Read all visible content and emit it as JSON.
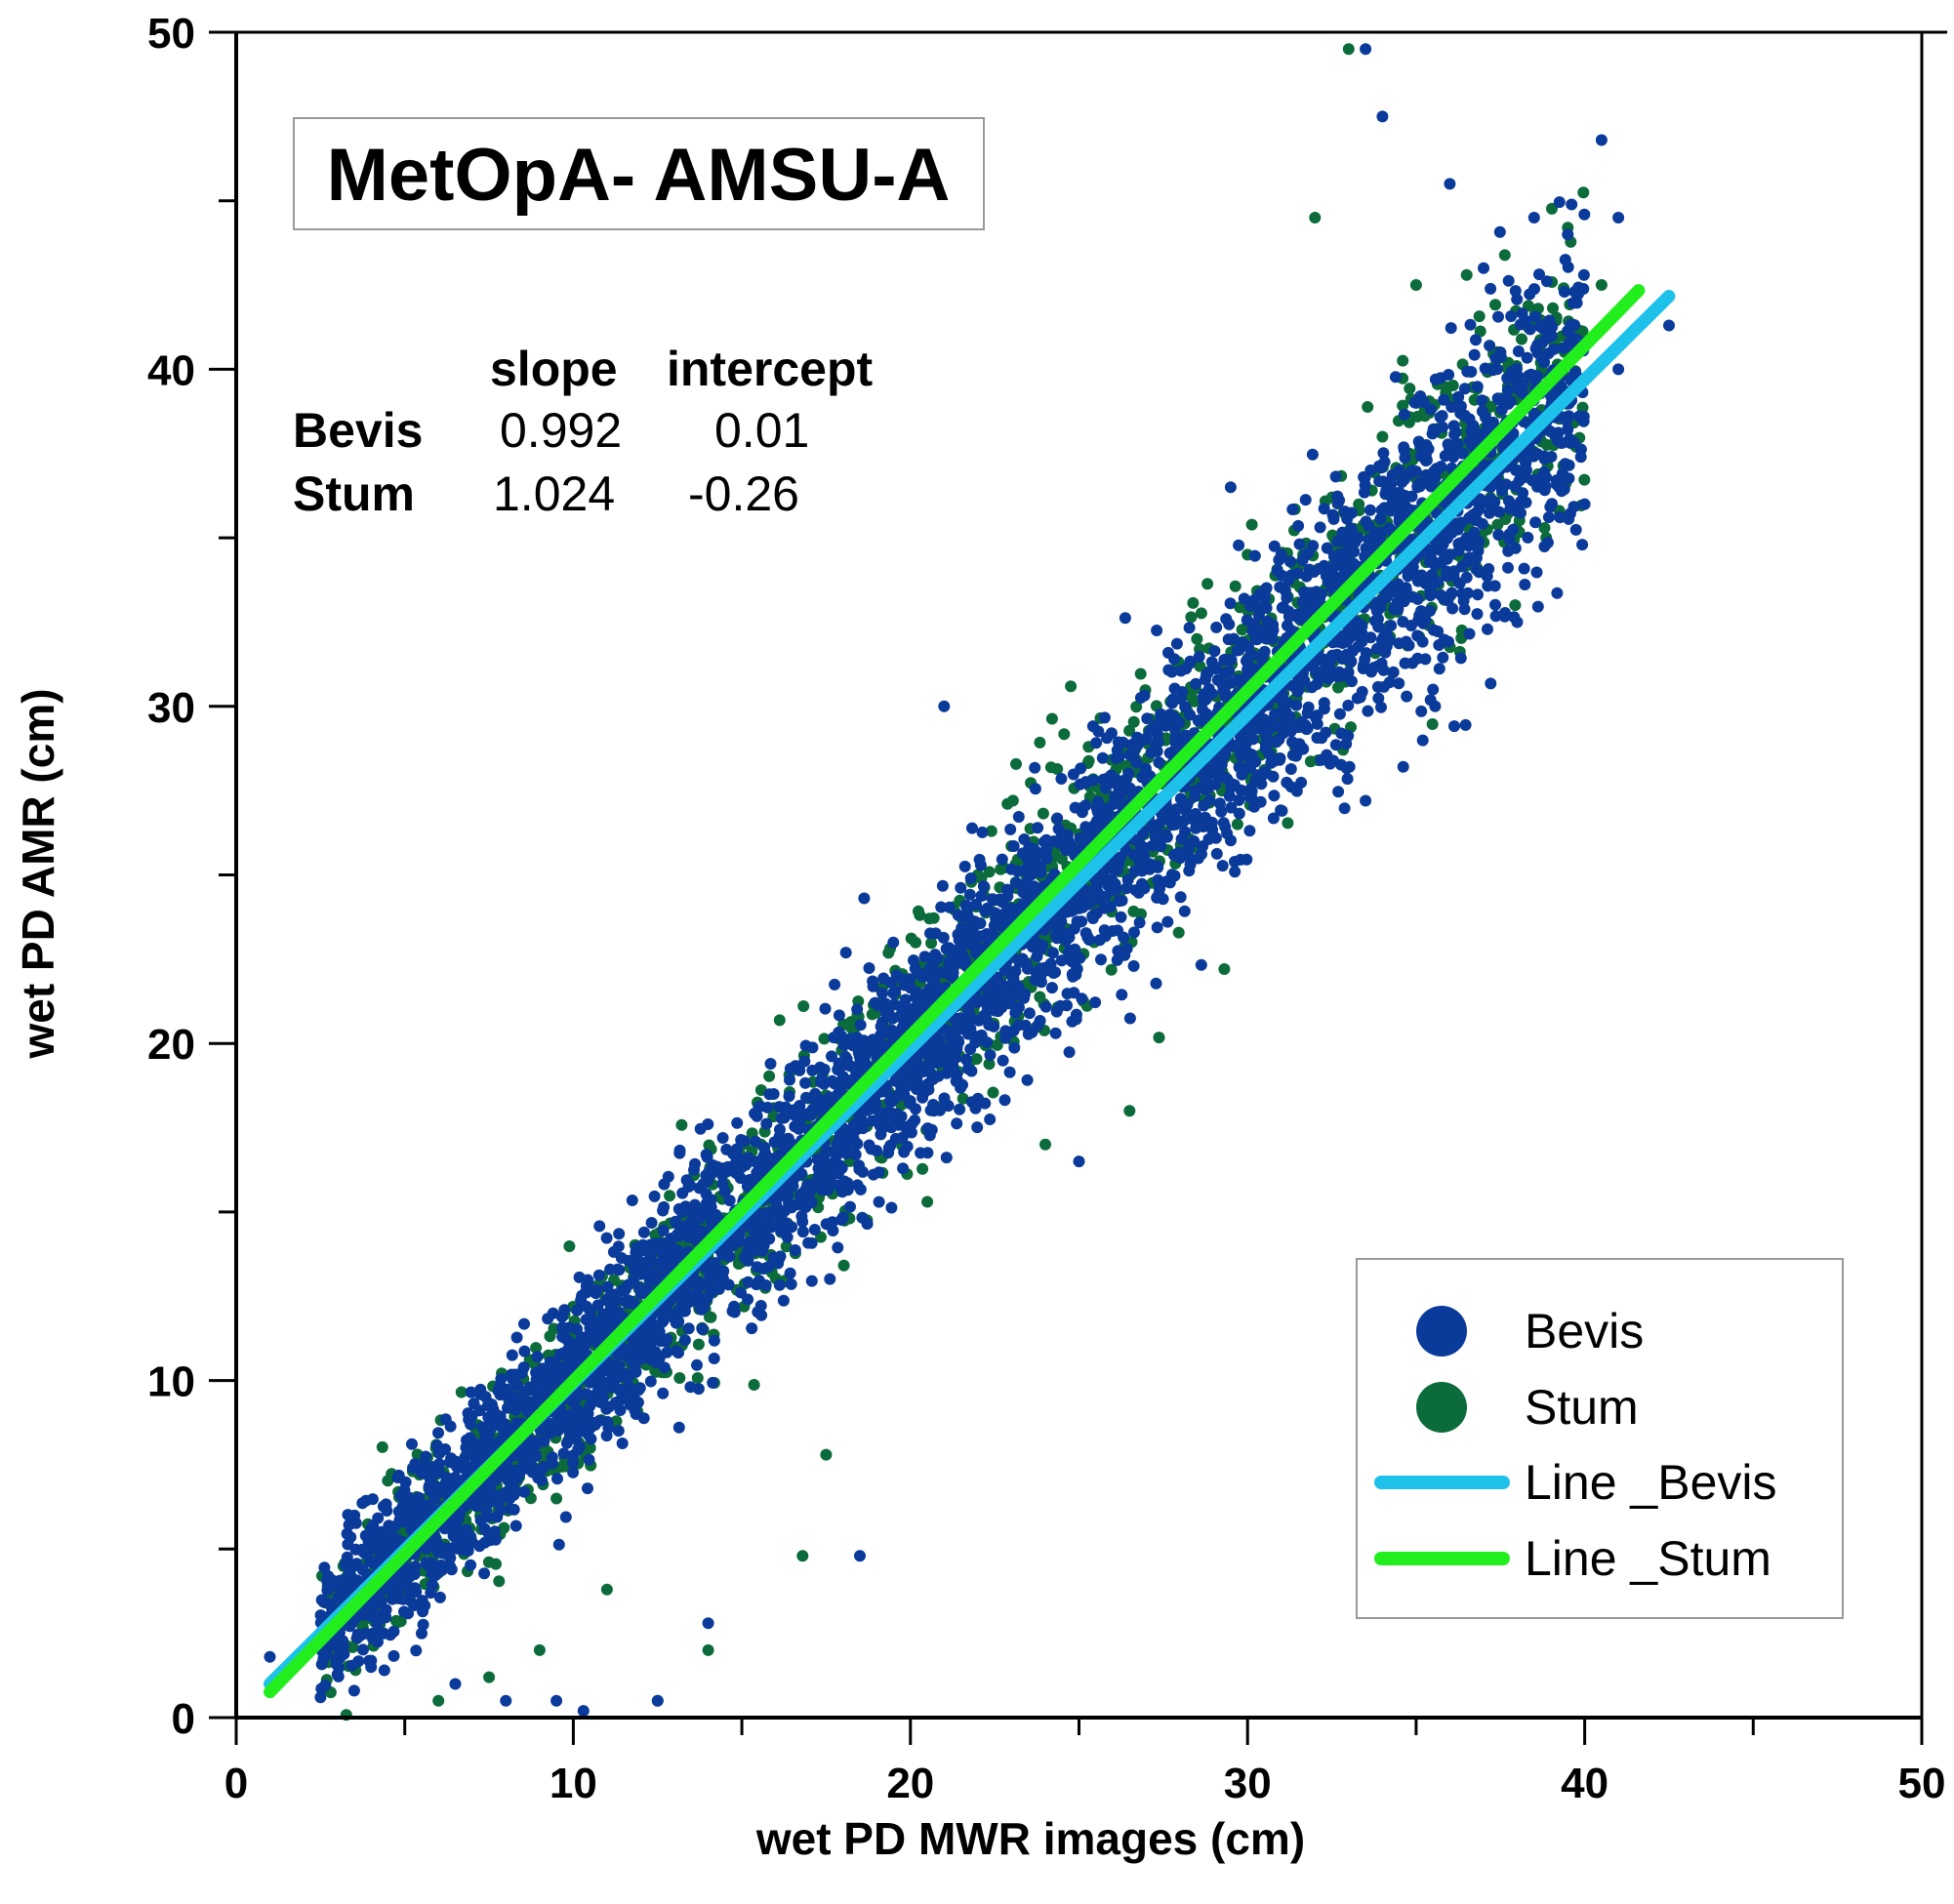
{
  "chart_data": {
    "type": "scatter",
    "title": "MetOpA- AMSU-A",
    "xlabel": "wet PD MWR images (cm)",
    "ylabel": "wet PD AMR (cm)",
    "xlim": [
      0,
      50
    ],
    "ylim": [
      0,
      50
    ],
    "x_ticks": [
      0,
      10,
      20,
      30,
      40,
      50
    ],
    "y_ticks": [
      0,
      10,
      20,
      30,
      40,
      50
    ],
    "minor_tick_step": 5,
    "grid": false,
    "legend_position": "bottom-right",
    "stats": {
      "headers": [
        "slope",
        "intercept"
      ],
      "rows": [
        {
          "name": "Bevis",
          "slope": "0.992",
          "intercept": "0.01"
        },
        {
          "name": "Stum",
          "slope": "1.024",
          "intercept": "-0.26"
        }
      ]
    },
    "series": [
      {
        "name": "Bevis",
        "kind": "points",
        "color": "#0a3a9a",
        "dense_band": {
          "x_range": [
            2.5,
            40
          ],
          "slope": 0.992,
          "intercept": 0.01,
          "spread": 1.8
        },
        "x": [
          1.0,
          2.5,
          3.5,
          4.0,
          5.5,
          6.5,
          8.0,
          9.5,
          10.3,
          12.5,
          14.0,
          18.5,
          21.0,
          23.0,
          25.0,
          28.0,
          30.5,
          33.5,
          34.0,
          35.0,
          36.0,
          37.0,
          38.5,
          39.5,
          40.5,
          41.0,
          42.5,
          33.5,
          35.5,
          38.0,
          39.0,
          29.5,
          31.0,
          36.5,
          40.0,
          37.5,
          41.0
        ],
        "y": [
          1.8,
          0.6,
          0.8,
          1.5,
          2.5,
          1.0,
          0.5,
          0.5,
          0.2,
          0.5,
          2.8,
          4.8,
          30.0,
          24.0,
          16.5,
          25.5,
          28.0,
          49.5,
          47.5,
          39.0,
          45.5,
          43.0,
          44.5,
          44.0,
          46.8,
          44.5,
          41.3,
          27.2,
          30.5,
          32.5,
          39.2,
          36.5,
          34.5,
          35.0,
          36.0,
          40.5,
          40.0
        ]
      },
      {
        "name": "Stum",
        "kind": "points",
        "color": "#0b6b3a",
        "dense_band": {
          "x_range": [
            2.5,
            40
          ],
          "slope": 1.024,
          "intercept": -0.26,
          "spread": 1.8
        },
        "x": [
          6.0,
          7.5,
          9.0,
          11.0,
          12.5,
          14.0,
          16.8,
          9.5,
          7.0,
          17.5,
          20.5,
          24.0,
          26.5,
          33.0,
          35.0,
          36.5,
          37.5,
          39.5,
          40.5,
          38.0,
          32.0,
          30.0,
          34.0,
          28.5,
          22.0,
          13.0,
          10.5
        ],
        "y": [
          0.5,
          1.2,
          2.0,
          3.8,
          0.5,
          2.0,
          4.8,
          6.5,
          5.2,
          7.8,
          15.3,
          17.0,
          18.0,
          49.5,
          42.5,
          42.8,
          40.5,
          44.2,
          42.5,
          37.0,
          44.5,
          34.5,
          38.0,
          32.0,
          25.0,
          11.0,
          8.0
        ]
      },
      {
        "name": "Line _Bevis",
        "kind": "line",
        "color": "#1ec1ea",
        "slope": 0.992,
        "intercept": 0.01,
        "x_range": [
          1.0,
          42.5
        ]
      },
      {
        "name": "Line _Stum",
        "kind": "line",
        "color": "#22ee1e",
        "slope": 1.024,
        "intercept": -0.26,
        "x_range": [
          1.0,
          41.6
        ]
      }
    ]
  }
}
